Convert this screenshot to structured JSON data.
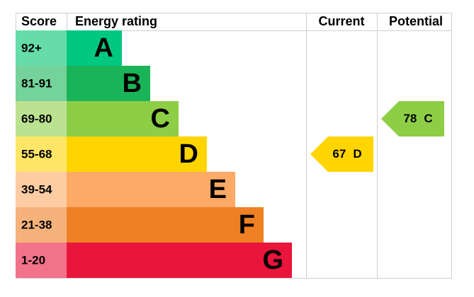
{
  "header": {
    "score": "Score",
    "energy_rating": "Energy rating",
    "current": "Current",
    "potential": "Potential"
  },
  "bands": [
    {
      "score": "92+",
      "rating": "A"
    },
    {
      "score": "81-91",
      "rating": "B"
    },
    {
      "score": "69-80",
      "rating": "C"
    },
    {
      "score": "55-68",
      "rating": "D"
    },
    {
      "score": "39-54",
      "rating": "E"
    },
    {
      "score": "21-38",
      "rating": "F"
    },
    {
      "score": "1-20",
      "rating": "G"
    }
  ],
  "current": {
    "score": "67",
    "rating": "D"
  },
  "potential": {
    "score": "78",
    "rating": "C"
  }
}
